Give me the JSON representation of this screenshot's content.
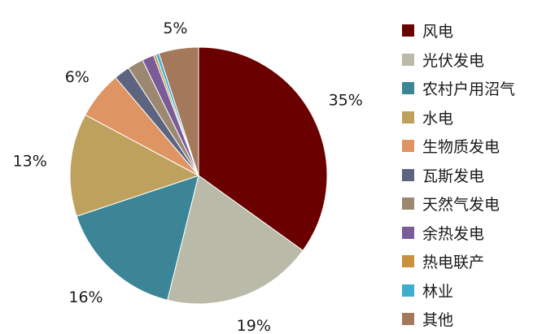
{
  "chart_data": {
    "type": "pie",
    "categories": [
      "风电",
      "光伏发电",
      "农村户用沼气",
      "水电",
      "生物质发电",
      "瓦斯发电",
      "天然气发电",
      "余热发电",
      "热电联产",
      "林业",
      "其他"
    ],
    "values": [
      35,
      19,
      16,
      13,
      6,
      2,
      2,
      1.5,
      0.3,
      0.4,
      5
    ],
    "data_labels": [
      "35%",
      "19%",
      "16%",
      "13%",
      "6%",
      "",
      "",
      "",
      "",
      "",
      "5%"
    ],
    "colors": [
      "#6b0000",
      "#babaa8",
      "#3b8597",
      "#bfa15e",
      "#df9464",
      "#5c6480",
      "#9c8870",
      "#7a5c98",
      "#c9903e",
      "#3daed0",
      "#a4785a"
    ],
    "legend_position": "right",
    "start_angle_deg": 0,
    "direction": "clockwise"
  }
}
